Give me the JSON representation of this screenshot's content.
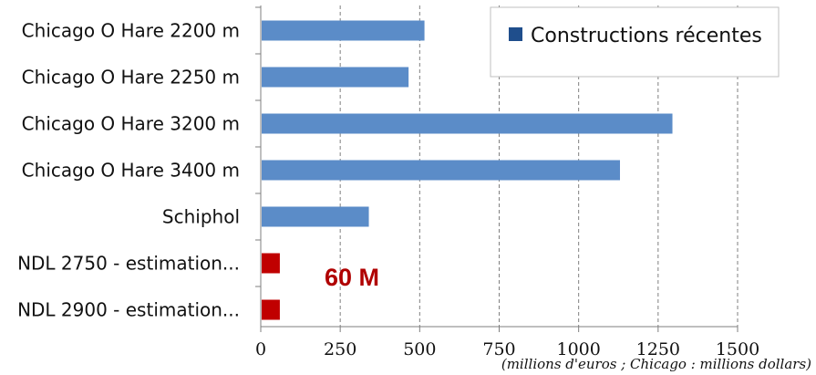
{
  "chart_data": {
    "type": "bar",
    "orientation": "horizontal",
    "categories": [
      "Chicago O Hare 2200 m",
      "Chicago O Hare 2250 m",
      "Chicago O Hare 3200 m",
      "Chicago O Hare 3400 m",
      "Schiphol",
      "NDL 2750 - estimation...",
      "NDL 2900 - estimation..."
    ],
    "values": [
      515,
      465,
      1295,
      1130,
      340,
      60,
      60
    ],
    "bar_colors": [
      "#5b8cc8",
      "#5b8cc8",
      "#5b8cc8",
      "#5b8cc8",
      "#5b8cc8",
      "#c00000",
      "#c00000"
    ],
    "series": [
      {
        "name": "Constructions récentes",
        "color": "#1f4e8c"
      }
    ],
    "xlim": [
      0,
      1500
    ],
    "xticks": [
      "0",
      "250",
      "500",
      "750",
      "1000",
      "1250",
      "1500"
    ],
    "xtick_values": [
      0,
      250,
      500,
      750,
      1000,
      1250,
      1500
    ],
    "grid": "vertical dashed",
    "legend_position": "top-right",
    "annotation": "60 M",
    "note": "(millions d'euros ; Chicago : millions dollars)"
  }
}
